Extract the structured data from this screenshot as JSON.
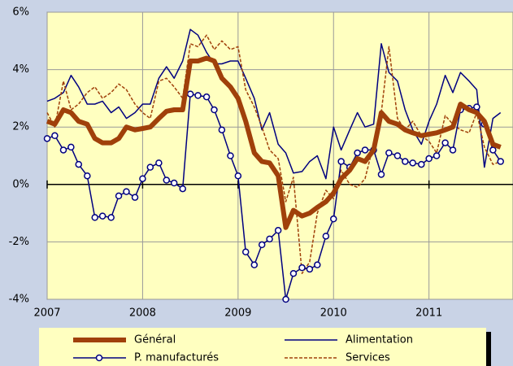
{
  "chart_data": {
    "type": "line",
    "x": [
      2007.0,
      2007.08,
      2007.17,
      2007.25,
      2007.33,
      2007.42,
      2007.5,
      2007.58,
      2007.67,
      2007.75,
      2007.83,
      2007.92,
      2008.0,
      2008.08,
      2008.17,
      2008.25,
      2008.33,
      2008.42,
      2008.5,
      2008.58,
      2008.67,
      2008.75,
      2008.83,
      2008.92,
      2009.0,
      2009.08,
      2009.17,
      2009.25,
      2009.33,
      2009.42,
      2009.5,
      2009.58,
      2009.67,
      2009.75,
      2009.83,
      2009.92,
      2010.0,
      2010.08,
      2010.17,
      2010.25,
      2010.33,
      2010.42,
      2010.5,
      2010.58,
      2010.67,
      2010.75,
      2010.83,
      2010.92,
      2011.0,
      2011.08,
      2011.17,
      2011.25,
      2011.33,
      2011.42,
      2011.5,
      2011.58,
      2011.67,
      2011.75
    ],
    "series": [
      {
        "name": "Général",
        "color": "#a0400a",
        "width": 6,
        "dash": false,
        "marker": null,
        "values": [
          2.2,
          2.1,
          2.6,
          2.5,
          2.2,
          2.1,
          1.6,
          1.45,
          1.45,
          1.6,
          2.0,
          1.9,
          1.95,
          2.0,
          2.3,
          2.55,
          2.6,
          2.6,
          4.3,
          4.3,
          4.4,
          4.3,
          3.7,
          3.4,
          3.0,
          2.2,
          1.1,
          0.8,
          0.75,
          0.3,
          -1.5,
          -0.9,
          -1.1,
          -1.0,
          -0.8,
          -0.6,
          -0.3,
          0.2,
          0.5,
          0.9,
          0.8,
          1.2,
          2.5,
          2.2,
          2.1,
          1.9,
          1.8,
          1.7,
          1.75,
          1.8,
          1.9,
          2.0,
          2.8,
          2.6,
          2.5,
          2.2,
          1.4,
          1.3
        ]
      },
      {
        "name": "Alimentation",
        "color": "#000080",
        "width": 1.5,
        "dash": false,
        "marker": null,
        "values": [
          2.9,
          3.0,
          3.2,
          3.8,
          3.4,
          2.8,
          2.8,
          2.9,
          2.5,
          2.7,
          2.3,
          2.5,
          2.8,
          2.8,
          3.7,
          4.1,
          3.7,
          4.3,
          5.4,
          5.2,
          4.6,
          4.2,
          4.2,
          4.3,
          4.3,
          3.7,
          3.0,
          1.9,
          2.5,
          1.4,
          1.1,
          0.4,
          0.45,
          0.8,
          1.0,
          0.2,
          2.0,
          1.2,
          1.9,
          2.5,
          2.0,
          2.1,
          4.9,
          3.9,
          3.6,
          2.6,
          1.9,
          1.4,
          2.2,
          2.8,
          3.8,
          3.2,
          3.9,
          3.6,
          3.3,
          0.6,
          2.3,
          2.5
        ]
      },
      {
        "name": "P. manufacturés",
        "color": "#000080",
        "width": 1.5,
        "dash": false,
        "marker": "circle",
        "values": [
          1.6,
          1.7,
          1.2,
          1.3,
          0.7,
          0.3,
          -1.15,
          -1.1,
          -1.15,
          -0.4,
          -0.25,
          -0.45,
          0.2,
          0.6,
          0.75,
          0.15,
          0.05,
          -0.15,
          3.15,
          3.1,
          3.05,
          2.6,
          1.9,
          1.0,
          0.3,
          -2.35,
          -2.8,
          -2.1,
          -1.9,
          -1.6,
          -4.0,
          -3.1,
          -2.9,
          -2.95,
          -2.8,
          -1.8,
          -1.2,
          0.8,
          0.6,
          1.1,
          1.2,
          1.2,
          0.35,
          1.1,
          1.0,
          0.8,
          0.75,
          0.7,
          0.9,
          1.0,
          1.45,
          1.2,
          2.6,
          2.65,
          2.7,
          2.1,
          1.2,
          0.8
        ]
      },
      {
        "name": "Services",
        "color": "#a0400a",
        "width": 1.5,
        "dash": true,
        "marker": null,
        "values": [
          2.5,
          2.0,
          3.6,
          2.6,
          2.8,
          3.2,
          3.4,
          3.0,
          3.2,
          3.5,
          3.3,
          2.8,
          2.5,
          2.3,
          3.6,
          3.7,
          3.4,
          3.0,
          4.9,
          4.8,
          5.2,
          4.7,
          5.0,
          4.7,
          4.8,
          3.3,
          2.7,
          2.0,
          1.2,
          0.9,
          -0.6,
          0.25,
          -3.1,
          -2.7,
          -1.0,
          -0.2,
          -0.5,
          0.5,
          0.0,
          -0.1,
          0.2,
          1.4,
          2.5,
          4.8,
          2.3,
          1.9,
          2.2,
          1.7,
          1.5,
          1.1,
          2.4,
          2.1,
          1.9,
          1.8,
          2.5,
          1.3,
          0.7,
          0.8
        ]
      }
    ],
    "xlim": [
      2007,
      2011.88
    ],
    "xticks": [
      2007,
      2008,
      2009,
      2010,
      2011
    ],
    "ylim": [
      -4,
      6
    ],
    "yticks": [
      {
        "value": -4,
        "label": "-4%"
      },
      {
        "value": -2,
        "label": "-2%"
      },
      {
        "value": 0,
        "label": "0%"
      },
      {
        "value": 2,
        "label": "2%"
      },
      {
        "value": 4,
        "label": "4%"
      },
      {
        "value": 6,
        "label": "6%"
      }
    ],
    "grid": true,
    "legend": "bottom"
  }
}
